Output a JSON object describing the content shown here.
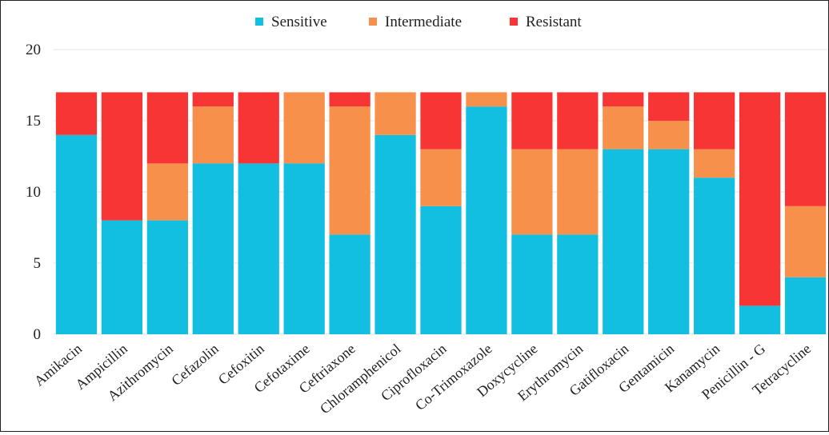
{
  "chart_data": {
    "type": "bar",
    "stacked": true,
    "categories": [
      "Amikacin",
      "Ampicillin",
      "Azithromycin",
      "Cefazolin",
      "Cefoxitin",
      "Cefotaxime",
      "Ceftriaxone",
      "Chloramphenicol",
      "Ciprofloxacin",
      "Co-Trimoxazole",
      "Doxycycline",
      "Erythromycin",
      "Gatifloxacin",
      "Gentamicin",
      "Kanamycin",
      "Penicillin - G",
      "Tetracycline"
    ],
    "series": [
      {
        "name": "Sensitive",
        "color": "#12BFE0",
        "values": [
          14,
          8,
          8,
          12,
          12,
          12,
          7,
          14,
          9,
          16,
          7,
          7,
          13,
          13,
          11,
          2,
          4
        ]
      },
      {
        "name": "Intermediate",
        "color": "#F7904A",
        "values": [
          0,
          0,
          4,
          4,
          0,
          5,
          9,
          3,
          4,
          1,
          6,
          6,
          3,
          2,
          2,
          0,
          5
        ]
      },
      {
        "name": "Resistant",
        "color": "#F83535",
        "values": [
          3,
          9,
          5,
          1,
          5,
          0,
          1,
          0,
          4,
          0,
          4,
          4,
          1,
          2,
          4,
          15,
          8
        ]
      }
    ],
    "ylim": [
      0,
      20
    ],
    "yticks": [
      0,
      5,
      10,
      15,
      20
    ],
    "grid": true,
    "legend": "top-center",
    "title": "",
    "xlabel": "",
    "ylabel": ""
  }
}
